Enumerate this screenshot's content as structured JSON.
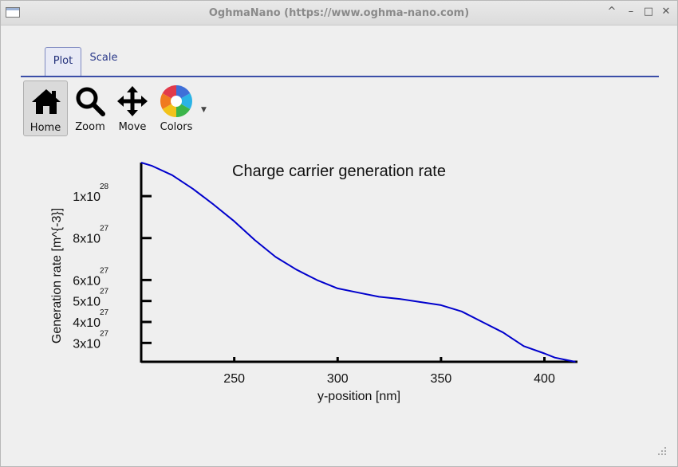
{
  "window": {
    "title": "OghmaNano (https://www.oghma-nano.com)",
    "controls": [
      "^",
      "–",
      "□",
      "✕"
    ]
  },
  "tabs": [
    {
      "label": "Plot",
      "active": true
    },
    {
      "label": "Scale",
      "active": false
    }
  ],
  "toolbar": {
    "home_label": "Home",
    "zoom_label": "Zoom",
    "move_label": "Move",
    "colors_label": "Colors"
  },
  "chart_data": {
    "type": "line",
    "title": "Charge carrier generation rate",
    "xlabel": "y-position [nm]",
    "ylabel": "Generation rate [m^{-3}]",
    "xlim": [
      205,
      416
    ],
    "ylim": [
      2.1e+27,
      1.16e+28
    ],
    "x_ticks": [
      250,
      300,
      350,
      400
    ],
    "y_ticks": [
      {
        "value": 3e+27,
        "mantissa": "3x10",
        "exp": "27"
      },
      {
        "value": 4e+27,
        "mantissa": "4x10",
        "exp": "27"
      },
      {
        "value": 5e+27,
        "mantissa": "5x10",
        "exp": "27"
      },
      {
        "value": 6e+27,
        "mantissa": "6x10",
        "exp": "27"
      },
      {
        "value": 8e+27,
        "mantissa": "8x10",
        "exp": "27"
      },
      {
        "value": 1e+28,
        "mantissa": "1x10",
        "exp": "28"
      }
    ],
    "series": [
      {
        "color": "#0000cc",
        "x": [
          205,
          210,
          220,
          230,
          240,
          250,
          260,
          270,
          280,
          290,
          300,
          310,
          320,
          330,
          340,
          350,
          360,
          370,
          380,
          390,
          400,
          405,
          410,
          415
        ],
        "y": [
          1.16e+28,
          1.145e+28,
          1.1e+28,
          1.035e+28,
          9.6e+27,
          8.8e+27,
          7.9e+27,
          7.1e+27,
          6.5e+27,
          6e+27,
          5.6e+27,
          5.4e+27,
          5.2e+27,
          5.1e+27,
          4.95e+27,
          4.8e+27,
          4.5e+27,
          4e+27,
          3.5e+27,
          2.85e+27,
          2.5e+27,
          2.3e+27,
          2.2e+27,
          2.1e+27
        ]
      }
    ]
  }
}
